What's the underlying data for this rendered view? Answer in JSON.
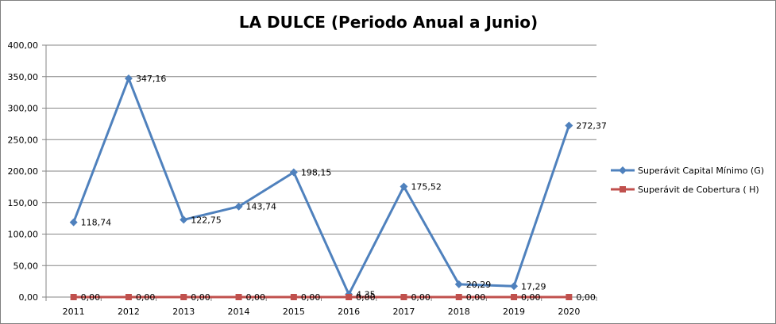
{
  "chart_data": {
    "type": "line",
    "title": "LA DULCE (Periodo Anual a Junio)",
    "xlabel": "",
    "ylabel": "",
    "categories": [
      "2011",
      "2012",
      "2013",
      "2014",
      "2015",
      "2016",
      "2017",
      "2018",
      "2019",
      "2020"
    ],
    "ylim": [
      0,
      400
    ],
    "y_ticks": [
      "0,00",
      "50,00",
      "100,00",
      "150,00",
      "200,00",
      "250,00",
      "300,00",
      "350,00",
      "400,00"
    ],
    "grid": true,
    "legend_position": "right",
    "series": [
      {
        "name": "Superávit Capital Mínimo  (G)",
        "color": "#4F81BD",
        "marker": "diamond",
        "values": [
          118.74,
          347.16,
          122.75,
          143.74,
          198.15,
          4.35,
          175.52,
          20.29,
          17.29,
          272.37
        ],
        "labels": [
          "118,74",
          "347,16",
          "122,75",
          "143,74",
          "198,15",
          "4,35",
          "175,52",
          "20,29",
          "17,29",
          "272,37"
        ]
      },
      {
        "name": "Superávit de Cobertura ( H)",
        "color": "#C0504D",
        "marker": "square",
        "values": [
          0,
          0,
          0,
          0,
          0,
          0,
          0,
          0,
          0,
          0
        ],
        "labels": [
          "0,00",
          "0,00",
          "0,00",
          "0,00",
          "0,00",
          "0,00",
          "0,00",
          "0,00",
          "0,00",
          "0,00"
        ]
      }
    ]
  }
}
